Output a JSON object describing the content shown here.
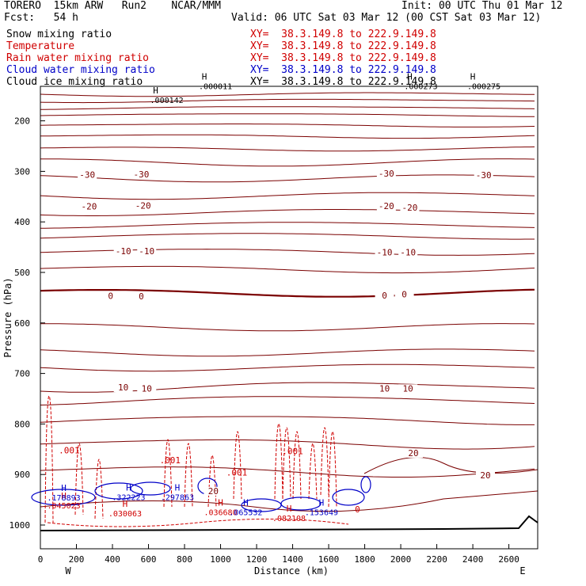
{
  "header": {
    "model": "TORERO  15km ARW   Run2    NCAR/MMM",
    "init": "Init: 00 UTC Thu 01 Mar 12",
    "fcst": "Fcst:   54 h",
    "valid": "Valid: 06 UTC Sat 03 Mar 12 (00 CST Sat 03 Mar 12)"
  },
  "legend": [
    {
      "label": "Snow mixing ratio",
      "xy": "XY=  38.3.149.8 to 222.9.149.8",
      "color": "#000000"
    },
    {
      "label": "Temperature",
      "xy": "XY=  38.3.149.8 to 222.9.149.8",
      "color": "#d00000"
    },
    {
      "label": "Rain water mixing ratio",
      "xy": "XY=  38.3.149.8 to 222.9.149.8",
      "color": "#d00000"
    },
    {
      "label": "Cloud water mixing ratio",
      "xy": "XY=  38.3.149.8 to 222.9.149.8",
      "color": "#0000c8"
    },
    {
      "label": "Cloud ice mixing ratio",
      "xy": "XY=  38.3.149.8 to 222.9.149.8",
      "color": "#000000"
    }
  ],
  "chart_data": {
    "type": "cross-section contour",
    "xlabel": "Distance (km)",
    "ylabel": "Pressure (hPa)",
    "xlim": [
      0,
      2760
    ],
    "ylim_hpa": [
      1050,
      100
    ],
    "x_ticks": [
      0,
      200,
      400,
      600,
      800,
      1000,
      1200,
      1400,
      1600,
      1800,
      2000,
      2200,
      2400,
      2600
    ],
    "y_ticks": [
      200,
      300,
      400,
      500,
      600,
      700,
      800,
      900,
      1000
    ],
    "end_labels": {
      "left": "W",
      "right": "E"
    },
    "temperature_labels": [
      {
        "text": "-30",
        "x": 260,
        "p": 311
      },
      {
        "text": "-30",
        "x": 560,
        "p": 310
      },
      {
        "text": "-30",
        "x": 1920,
        "p": 309
      },
      {
        "text": "-30",
        "x": 2460,
        "p": 312
      },
      {
        "text": "-20",
        "x": 270,
        "p": 374
      },
      {
        "text": "-20",
        "x": 570,
        "p": 372
      },
      {
        "text": "-20",
        "x": 1920,
        "p": 373
      },
      {
        "text": "-20",
        "x": 2050,
        "p": 376
      },
      {
        "text": "-10",
        "x": 460,
        "p": 462
      },
      {
        "text": "-10",
        "x": 590,
        "p": 462
      },
      {
        "text": "-10",
        "x": 1910,
        "p": 465
      },
      {
        "text": "-10",
        "x": 2040,
        "p": 465
      },
      {
        "text": "0",
        "x": 390,
        "p": 551
      },
      {
        "text": "0",
        "x": 560,
        "p": 552
      },
      {
        "text": "0",
        "x": 1910,
        "p": 550
      },
      {
        "text": "0",
        "x": 2020,
        "p": 548
      },
      {
        "text": "10",
        "x": 460,
        "p": 732
      },
      {
        "text": "10",
        "x": 590,
        "p": 734
      },
      {
        "text": "10",
        "x": 1910,
        "p": 734
      },
      {
        "text": "10",
        "x": 2040,
        "p": 734
      },
      {
        "text": "20",
        "x": 2070,
        "p": 862
      },
      {
        "text": "20",
        "x": 2470,
        "p": 906
      },
      {
        "text": "20",
        "x": 960,
        "p": 937
      }
    ],
    "snow_extrema": [
      {
        "mark": "H",
        "value": ".000011",
        "x": 910,
        "p": 128
      },
      {
        "mark": "H",
        "value": ".000142",
        "x": 640,
        "p": 155
      },
      {
        "mark": "H",
        "value": ".000273",
        "x": 2050,
        "p": 128
      },
      {
        "mark": "H",
        "value": ".000275",
        "x": 2400,
        "p": 128
      }
    ],
    "rain_labels": [
      {
        "text": ".001",
        "x": 160,
        "p": 858
      },
      {
        "text": ".001",
        "x": 720,
        "p": 878
      },
      {
        "text": ".001",
        "x": 1090,
        "p": 902
      },
      {
        "text": ".001",
        "x": 1400,
        "p": 860
      },
      {
        "text": "0",
        "x": 1760,
        "p": 975
      }
    ],
    "rain_extrema": [
      {
        "mark": "H",
        "value": ".045023",
        "x": 130,
        "p": 958
      },
      {
        "mark": "H",
        "value": ".030063",
        "x": 470,
        "p": 973
      },
      {
        "mark": "H",
        "value": ".036680",
        "x": 1000,
        "p": 971
      },
      {
        "mark": "H",
        "value": ".082108",
        "x": 1380,
        "p": 983
      }
    ],
    "cloud_water_extrema": [
      {
        "mark": "H",
        "value": ".178893",
        "x": 130,
        "p": 942
      },
      {
        "mark": "H",
        "value": ".322223",
        "x": 490,
        "p": 941
      },
      {
        "mark": "H",
        "value": ".297863",
        "x": 760,
        "p": 941
      },
      {
        "mark": "H",
        "value": ".065532",
        "x": 1140,
        "p": 971
      },
      {
        "mark": "H",
        "value": ".153649",
        "x": 1560,
        "p": 971
      }
    ]
  }
}
